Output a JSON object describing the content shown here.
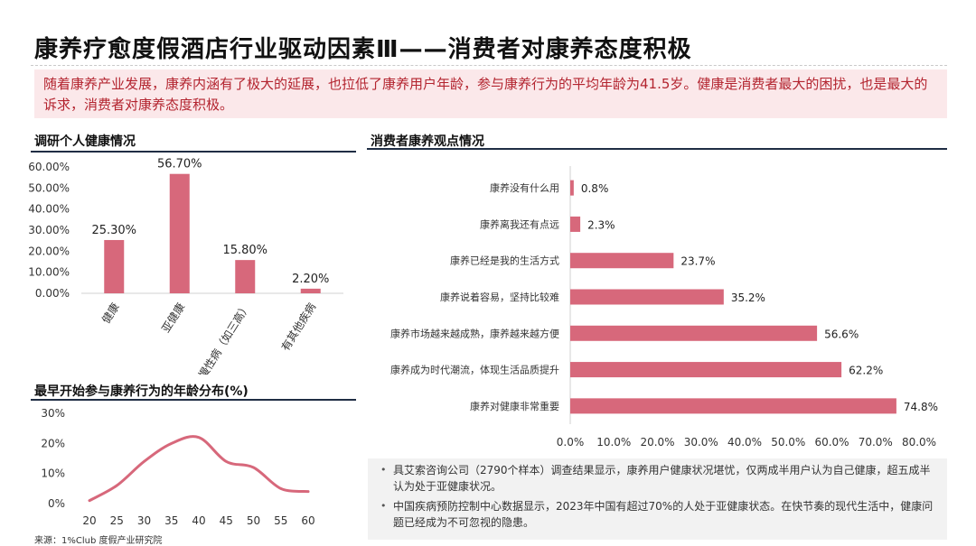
{
  "page": {
    "title": "康养疗愈度假酒店行业驱动因素Ⅲ——消费者对康养态度积极",
    "intro": "随着康养产业发展，康养内涵有了极大的延展，也拉低了康养用户年龄，参与康养行为的平均年龄为41.5岁。健康是消费者最大的困扰，也是最大的诉求，消费者对康养态度积极。",
    "section_health": "调研个人健康情况",
    "section_age": "最早开始参与康养行为的年龄分布(%)",
    "section_opinion": "消费者康养观点情况",
    "notes": [
      "具艾索咨询公司（2790个样本）调查结果显示，康养用户健康状况堪忧，仅两成半用户认为自己健康，超五成半认为处于亚健康状况。",
      "中国疾病预防控制中心数据显示，2023年中国有超过70%的人处于亚健康状态。在快节奏的现代生活中，健康问题已经成为不可忽视的隐患。"
    ],
    "source": "来源：1%Club 度假产业研究院",
    "bullet_char": "•",
    "colors": {
      "accent": "#d7687b",
      "accent_text": "#b3242f",
      "box_bg": "#fbe8ea",
      "rule": "#1f2d44"
    }
  },
  "chart_data": [
    {
      "type": "bar",
      "categories": [
        "健康",
        "亚健康",
        "有慢性病（如三高）",
        "有其他疾病"
      ],
      "values": [
        25.3,
        56.7,
        15.8,
        2.2
      ],
      "value_labels": [
        "25.30%",
        "56.70%",
        "15.80%",
        "2.20%"
      ],
      "ylim": [
        0,
        60
      ],
      "yticks": [
        "0.00%",
        "10.00%",
        "20.00%",
        "30.00%",
        "40.00%",
        "50.00%",
        "60.00%"
      ],
      "grid": false
    },
    {
      "type": "line",
      "x": [
        20,
        25,
        30,
        35,
        40,
        45,
        50,
        55,
        60
      ],
      "values": [
        1,
        6,
        14,
        20,
        22,
        14,
        12,
        5,
        4
      ],
      "xticks": [
        "20",
        "25",
        "30",
        "35",
        "40",
        "45",
        "50",
        "55",
        "60"
      ],
      "yticks": [
        "0%",
        "10%",
        "20%",
        "30%"
      ],
      "ylim": [
        0,
        30
      ],
      "grid": false
    },
    {
      "type": "bar",
      "orientation": "horizontal",
      "categories": [
        "康养没有什么用",
        "康养离我还有点远",
        "康养已经是我的生活方式",
        "康养说着容易，坚持比较难",
        "康养市场越来越成熟，康养越来越方便",
        "康养成为时代潮流，体现生活品质提升",
        "康养对健康非常重要"
      ],
      "values": [
        0.8,
        2.3,
        23.7,
        35.2,
        56.6,
        62.2,
        74.8
      ],
      "value_labels": [
        "0.8%",
        "2.3%",
        "23.7%",
        "35.2%",
        "56.6%",
        "62.2%",
        "74.8%"
      ],
      "xlim": [
        0,
        80
      ],
      "xticks": [
        "0.0%",
        "10.0%",
        "20.0%",
        "30.0%",
        "40.0%",
        "50.0%",
        "60.0%",
        "70.0%",
        "80.0%"
      ],
      "grid": false
    }
  ]
}
